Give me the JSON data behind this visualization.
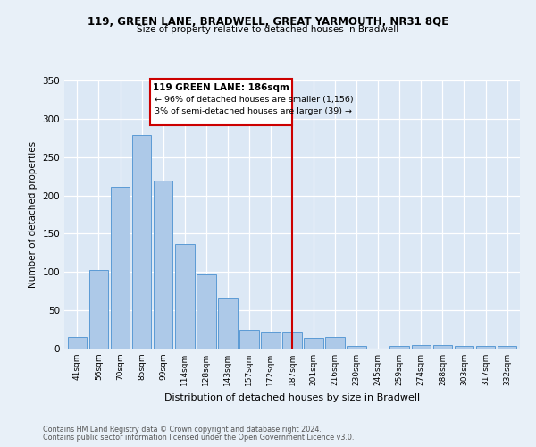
{
  "title1": "119, GREEN LANE, BRADWELL, GREAT YARMOUTH, NR31 8QE",
  "title2": "Size of property relative to detached houses in Bradwell",
  "xlabel": "Distribution of detached houses by size in Bradwell",
  "ylabel": "Number of detached properties",
  "bar_labels": [
    "41sqm",
    "56sqm",
    "70sqm",
    "85sqm",
    "99sqm",
    "114sqm",
    "128sqm",
    "143sqm",
    "157sqm",
    "172sqm",
    "187sqm",
    "201sqm",
    "216sqm",
    "230sqm",
    "245sqm",
    "259sqm",
    "274sqm",
    "288sqm",
    "303sqm",
    "317sqm",
    "332sqm"
  ],
  "bar_values": [
    15,
    103,
    211,
    279,
    219,
    137,
    97,
    67,
    25,
    22,
    22,
    14,
    15,
    3,
    0,
    4,
    5,
    5,
    3,
    3,
    3
  ],
  "bar_color": "#adc9e8",
  "bar_edge_color": "#5b9bd5",
  "vline_color": "#cc0000",
  "annotation_title": "119 GREEN LANE: 186sqm",
  "annotation_line1": "← 96% of detached houses are smaller (1,156)",
  "annotation_line2": "3% of semi-detached houses are larger (39) →",
  "annotation_box_color": "#ffffff",
  "annotation_box_edge": "#cc0000",
  "ylim": [
    0,
    350
  ],
  "yticks": [
    0,
    50,
    100,
    150,
    200,
    250,
    300,
    350
  ],
  "bg_color": "#dce8f5",
  "fig_bg_color": "#e8f0f8",
  "footer1": "Contains HM Land Registry data © Crown copyright and database right 2024.",
  "footer2": "Contains public sector information licensed under the Open Government Licence v3.0."
}
